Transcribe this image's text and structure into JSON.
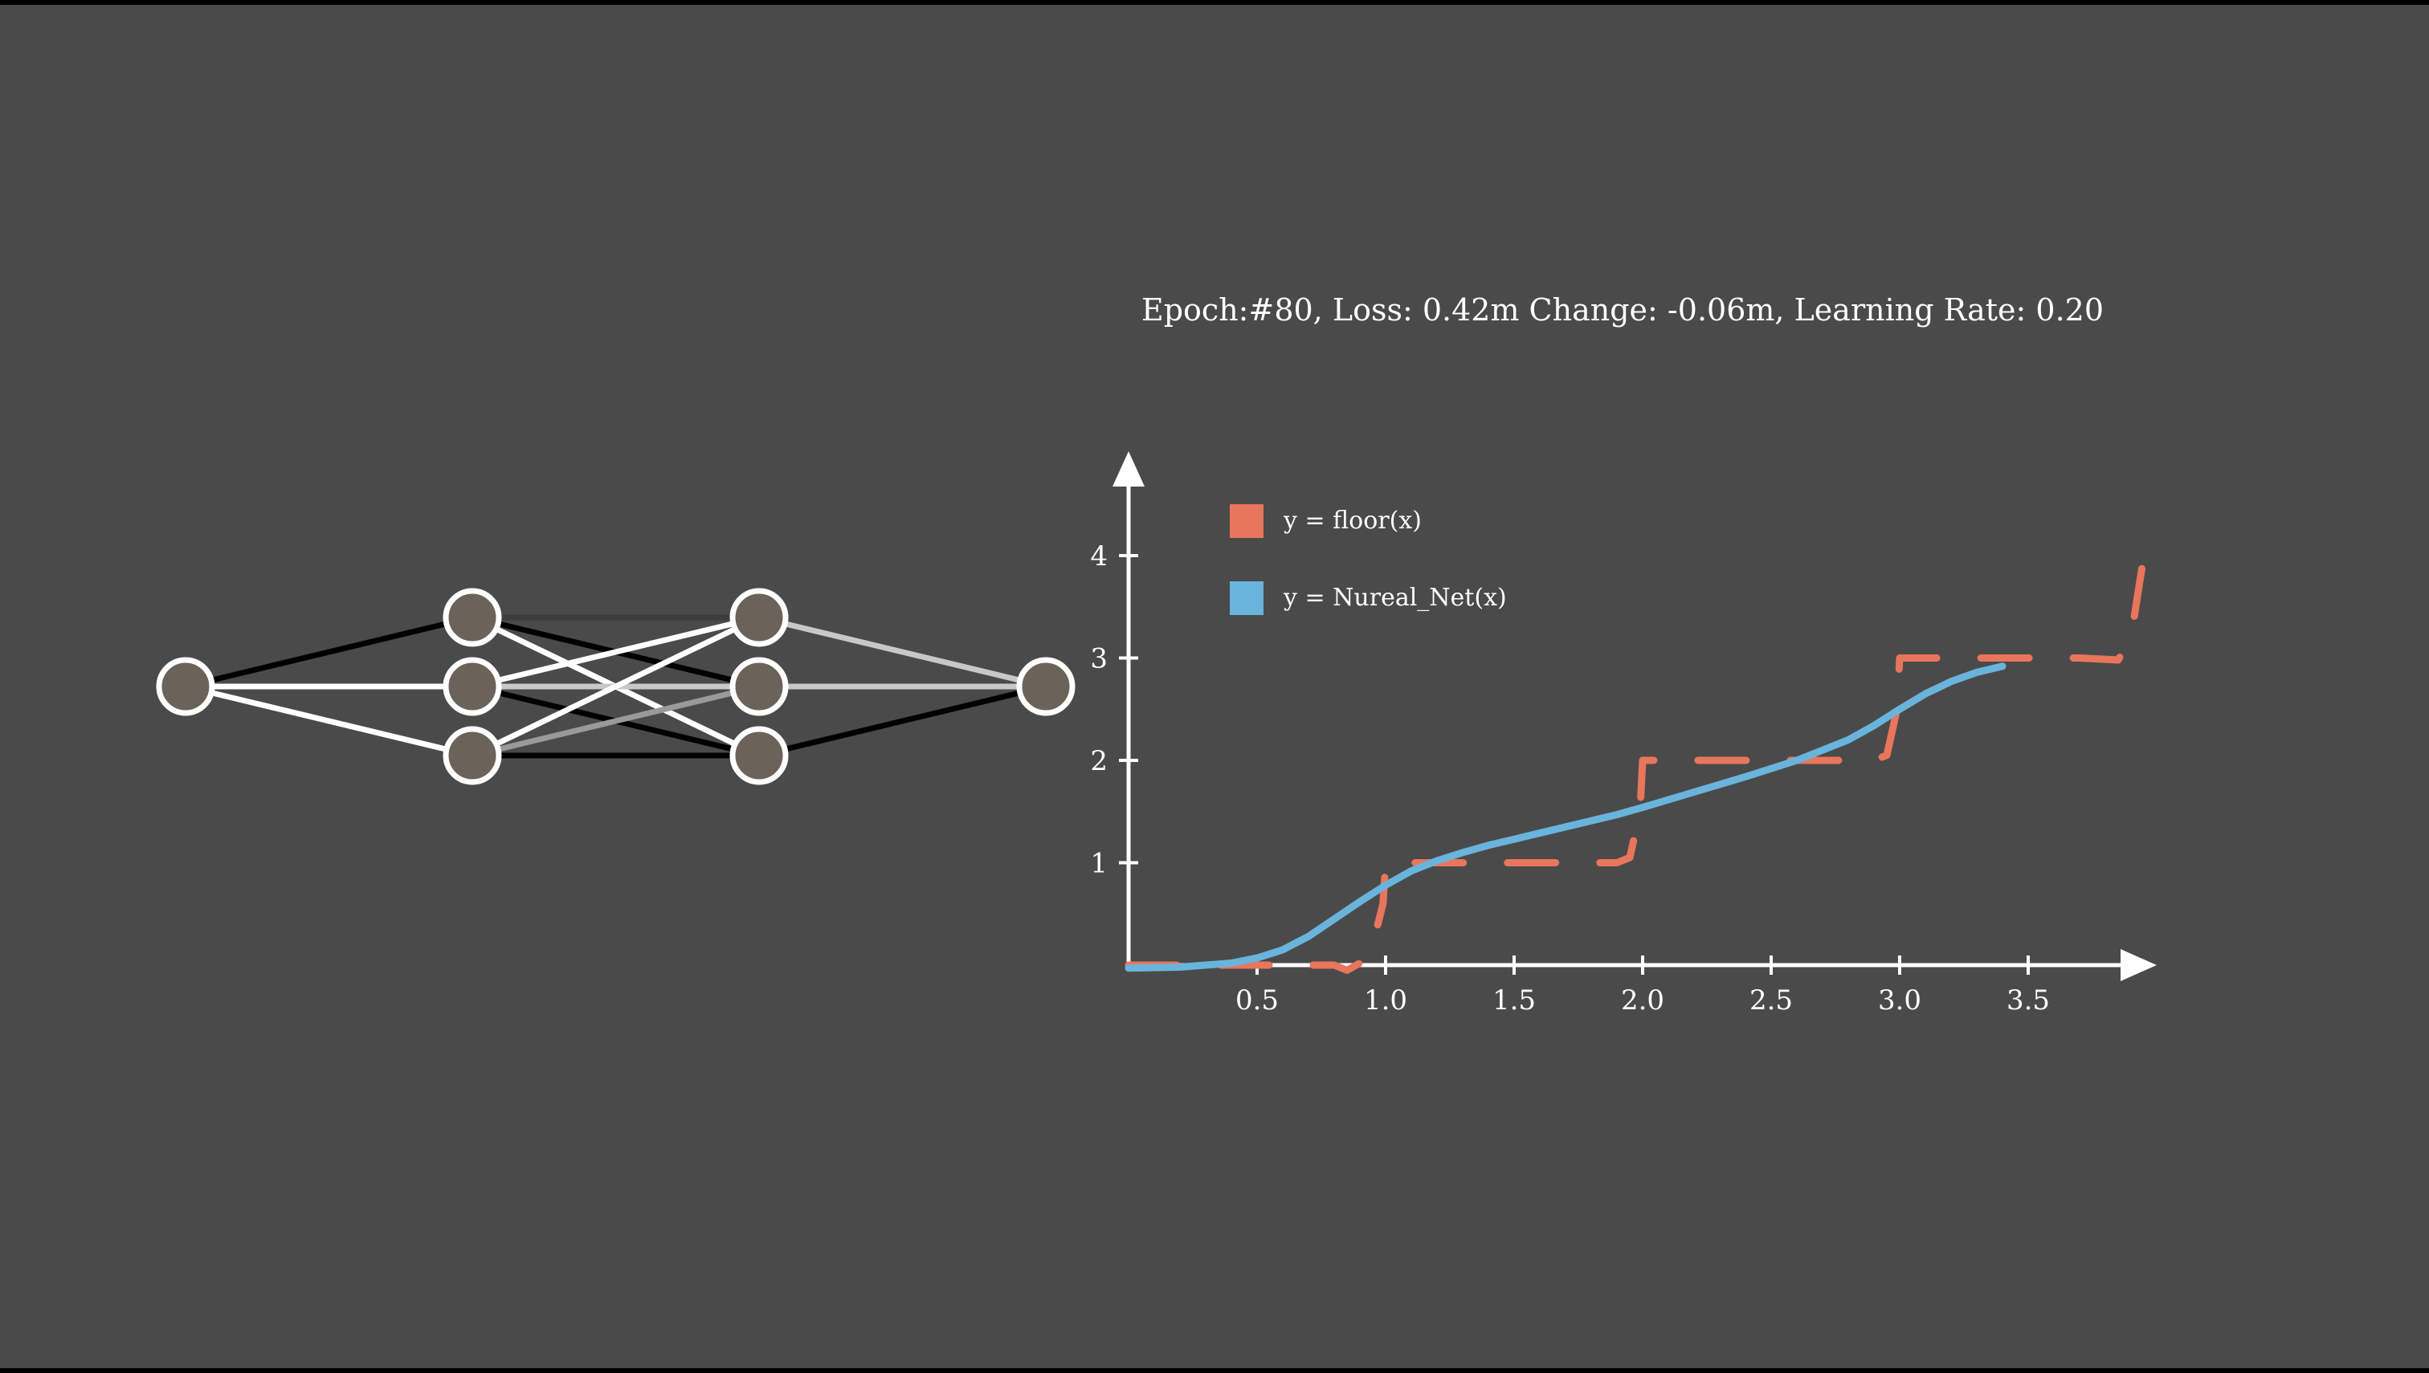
{
  "status_text": "Epoch:#80, Loss: 0.42m Change: -0.06m, Learning Rate: 0.20",
  "colors": {
    "background": "#4a4a4a",
    "floor_series": "#e8765c",
    "net_series": "#6ab4dc",
    "node_fill": "#6b625a",
    "node_stroke": "#ffffff"
  },
  "network": {
    "layers": [
      1,
      3,
      3,
      1
    ],
    "connections": [
      {
        "from": [
          0,
          0
        ],
        "to": [
          1,
          0
        ],
        "shade": "black"
      },
      {
        "from": [
          0,
          0
        ],
        "to": [
          1,
          1
        ],
        "shade": "white"
      },
      {
        "from": [
          0,
          0
        ],
        "to": [
          1,
          2
        ],
        "shade": "white"
      },
      {
        "from": [
          1,
          0
        ],
        "to": [
          2,
          0
        ],
        "shade": "darkgray"
      },
      {
        "from": [
          1,
          0
        ],
        "to": [
          2,
          1
        ],
        "shade": "black"
      },
      {
        "from": [
          1,
          0
        ],
        "to": [
          2,
          2
        ],
        "shade": "white"
      },
      {
        "from": [
          1,
          1
        ],
        "to": [
          2,
          0
        ],
        "shade": "white"
      },
      {
        "from": [
          1,
          1
        ],
        "to": [
          2,
          1
        ],
        "shade": "lightgray"
      },
      {
        "from": [
          1,
          1
        ],
        "to": [
          2,
          2
        ],
        "shade": "black"
      },
      {
        "from": [
          1,
          2
        ],
        "to": [
          2,
          0
        ],
        "shade": "white"
      },
      {
        "from": [
          1,
          2
        ],
        "to": [
          2,
          1
        ],
        "shade": "gray"
      },
      {
        "from": [
          1,
          2
        ],
        "to": [
          2,
          2
        ],
        "shade": "black"
      },
      {
        "from": [
          2,
          0
        ],
        "to": [
          3,
          0
        ],
        "shade": "lightgray"
      },
      {
        "from": [
          2,
          1
        ],
        "to": [
          3,
          0
        ],
        "shade": "lightgray"
      },
      {
        "from": [
          2,
          2
        ],
        "to": [
          3,
          0
        ],
        "shade": "black"
      }
    ]
  },
  "chart_data": {
    "type": "line",
    "title": "",
    "xlabel": "",
    "ylabel": "",
    "xlim": [
      0,
      4
    ],
    "ylim": [
      0,
      4.8
    ],
    "x_ticks": [
      "0.5",
      "1.0",
      "1.5",
      "2.0",
      "2.5",
      "3.0",
      "3.5"
    ],
    "y_ticks": [
      "1",
      "2",
      "3",
      "4"
    ],
    "grid": false,
    "legend_position": "top-left",
    "series": [
      {
        "name": "y = floor(x)",
        "legend_label": "y = floor(x)",
        "style": "dashed",
        "x": [
          0,
          0.2,
          0.4,
          0.6,
          0.8,
          0.85,
          0.9,
          0.95,
          0.99,
          1.0,
          1.1,
          1.3,
          1.5,
          1.7,
          1.9,
          1.95,
          1.99,
          2.0,
          2.1,
          2.3,
          2.5,
          2.7,
          2.9,
          2.95,
          2.99,
          3.0,
          3.1,
          3.3,
          3.5,
          3.7,
          3.85,
          3.9,
          3.95
        ],
        "y": [
          0,
          0,
          0,
          0,
          0,
          -0.05,
          0.02,
          0.2,
          0.6,
          1.0,
          1.0,
          1.0,
          1.0,
          1.0,
          1.0,
          1.05,
          1.5,
          2.0,
          2.0,
          2.0,
          2.0,
          2.0,
          2.0,
          2.05,
          2.5,
          3.0,
          3.0,
          3.0,
          3.0,
          3.0,
          2.98,
          3.2,
          4.0
        ]
      },
      {
        "name": "y = Nureal_Net(x)",
        "legend_label": "y = Nureal_Net(x)",
        "style": "solid",
        "x": [
          0,
          0.2,
          0.4,
          0.5,
          0.6,
          0.7,
          0.8,
          0.9,
          1.0,
          1.1,
          1.2,
          1.3,
          1.4,
          1.5,
          1.6,
          1.7,
          1.8,
          1.9,
          2.0,
          2.2,
          2.4,
          2.6,
          2.8,
          2.9,
          3.0,
          3.1,
          3.2,
          3.3,
          3.4
        ],
        "y": [
          -0.03,
          -0.02,
          0.02,
          0.07,
          0.15,
          0.28,
          0.45,
          0.62,
          0.78,
          0.92,
          1.02,
          1.1,
          1.17,
          1.23,
          1.29,
          1.35,
          1.41,
          1.47,
          1.54,
          1.69,
          1.84,
          2.0,
          2.2,
          2.34,
          2.5,
          2.65,
          2.77,
          2.86,
          2.92
        ]
      }
    ]
  }
}
